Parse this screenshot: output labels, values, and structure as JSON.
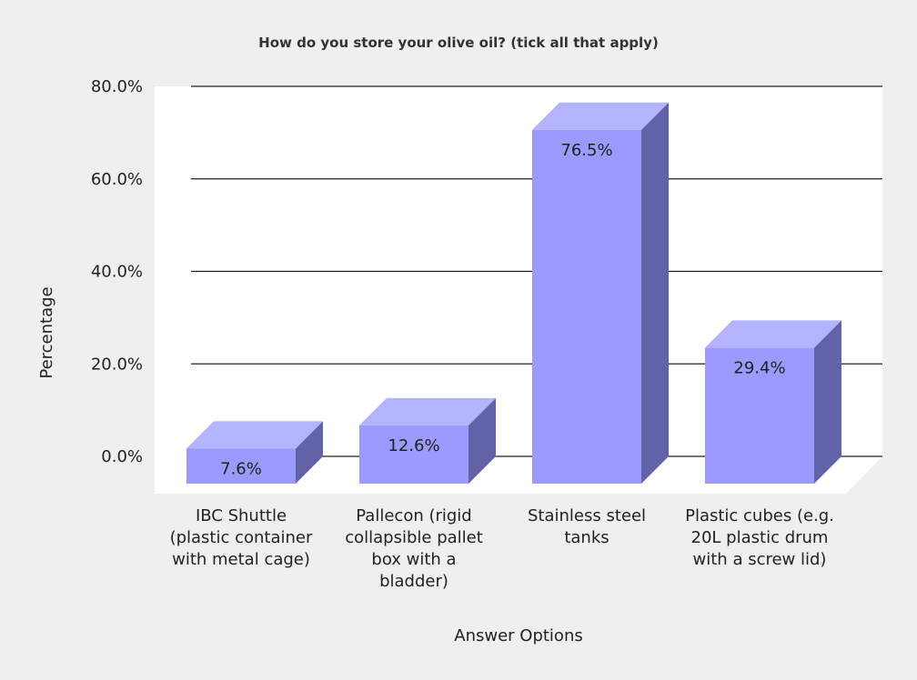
{
  "chart_data": {
    "type": "bar",
    "title": "How do you store your olive oil? (tick all that apply)",
    "xlabel": "Answer Options",
    "ylabel": "Percentage",
    "ylim": [
      0,
      80
    ],
    "yticks": [
      "0.0%",
      "20.0%",
      "40.0%",
      "60.0%",
      "80.0%"
    ],
    "categories": [
      [
        "IBC Shuttle",
        "(plastic container",
        "with metal cage)"
      ],
      [
        "Pallecon (rigid",
        "collapsible pallet",
        "box with a",
        "bladder)"
      ],
      [
        "Stainless steel",
        "tanks"
      ],
      [
        "Plastic cubes (e.g.",
        "20L plastic drum",
        "with a screw lid)"
      ]
    ],
    "values": [
      7.6,
      12.6,
      76.5,
      29.4
    ],
    "data_labels": [
      "7.6%",
      "12.6%",
      "76.5%",
      "29.4%"
    ],
    "grid": true,
    "style": "3d-column",
    "colors": {
      "front": "#9b9bff",
      "top": "#b3b3ff",
      "side": "#6262a6",
      "floor": "#ffffff",
      "background": "#efefef"
    }
  }
}
